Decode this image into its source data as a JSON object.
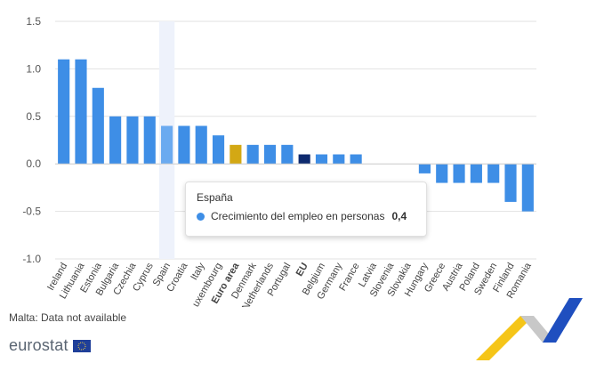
{
  "chart_data": {
    "type": "bar",
    "categories": [
      "Ireland",
      "Lithuania",
      "Estonia",
      "Bulgaria",
      "Czechia",
      "Cyprus",
      "Spain",
      "Croatia",
      "Italy",
      "Luxembourg",
      "Euro area",
      "Denmark",
      "Netherlands",
      "Portugal",
      "EU",
      "Belgium",
      "Germany",
      "France",
      "Latvia",
      "Slovenia",
      "Slovakia",
      "Hungary",
      "Greece",
      "Austria",
      "Poland",
      "Sweden",
      "Finland",
      "Romania"
    ],
    "values": [
      1.1,
      1.1,
      0.8,
      0.5,
      0.5,
      0.5,
      0.4,
      0.4,
      0.4,
      0.3,
      0.2,
      0.2,
      0.2,
      0.2,
      0.1,
      0.1,
      0.1,
      0.1,
      0.0,
      0.0,
      0.0,
      -0.1,
      -0.2,
      -0.2,
      -0.2,
      -0.2,
      -0.4,
      -0.5
    ],
    "ylim": [
      -1.0,
      1.5
    ],
    "yticks": [
      "1.5",
      "1.0",
      "0.5",
      "0.0",
      "-0.5",
      "-1.0"
    ],
    "ytick_values": [
      1.5,
      1.0,
      0.5,
      0.0,
      -0.5,
      -1.0
    ],
    "bold_categories": [
      "Euro area",
      "EU"
    ],
    "highlighted_category": "Spain",
    "colors": {
      "default": "#3e8ee6",
      "highlight": "#6aaaf0",
      "euro_area": "#d3a814",
      "eu": "#0e2a6e",
      "hover_band": "#eef2fb"
    },
    "grid": true
  },
  "tooltip": {
    "title": "España",
    "series_label": "Crecimiento del empleo en personas",
    "value": "0,4",
    "dot_color": "#3e8ee6"
  },
  "footnote": "Malta: Data not available",
  "logo": {
    "text": "eurostat"
  }
}
